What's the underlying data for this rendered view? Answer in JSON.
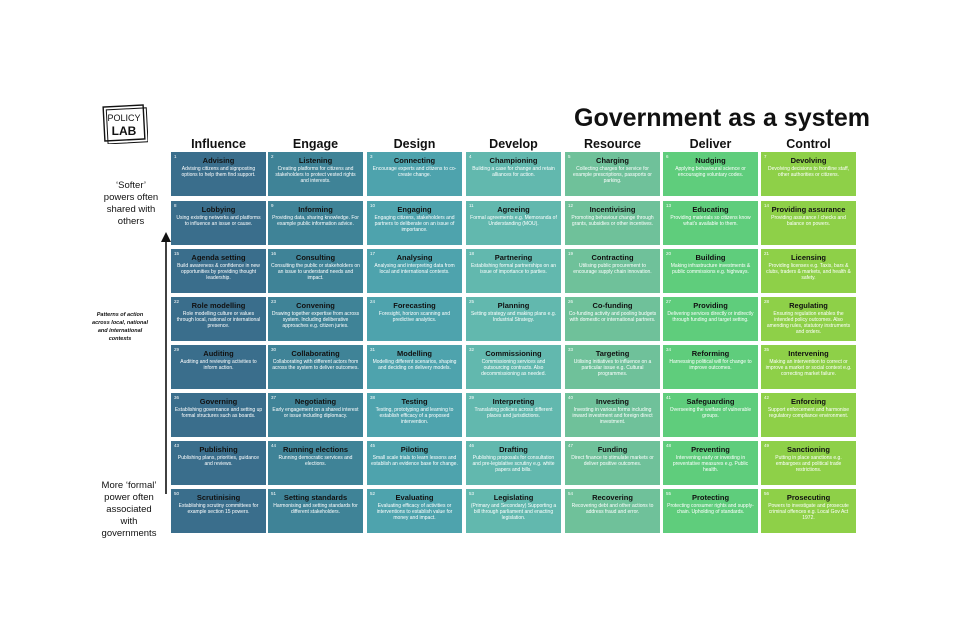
{
  "title": "Government as a system",
  "logo": {
    "line1": "POLICY",
    "line2": "LAB"
  },
  "sidebar": {
    "top": "‘Softer’ powers often shared with others",
    "middle": "Patterns of action across local, national and international contexts",
    "bottom": "More ‘formal’ power often associated with governments"
  },
  "columns": [
    {
      "label": "Influence",
      "color": "#3a6e8c",
      "cells": [
        {
          "num": "1",
          "name": "Advising",
          "desc": "Advising citizens and signposting options to help them find support."
        },
        {
          "num": "8",
          "name": "Lobbying",
          "desc": "Using existing networks and platforms to influence an issue or cause."
        },
        {
          "num": "15",
          "name": "Agenda setting",
          "desc": "Build awareness & confidence in new opportunities by providing thought leadership."
        },
        {
          "num": "22",
          "name": "Role modelling",
          "desc": "Role modelling culture or values through local, national or international presence."
        },
        {
          "num": "29",
          "name": "Auditing",
          "desc": "Auditing and reviewing activities to inform action."
        },
        {
          "num": "36",
          "name": "Governing",
          "desc": "Establishing governance and setting up formal structures such as boards."
        },
        {
          "num": "43",
          "name": "Publishing",
          "desc": "Publishing plans, priorities, guidance and reviews."
        },
        {
          "num": "50",
          "name": "Scrutinising",
          "desc": "Establishing scrutiny committees for example section 15 powers."
        }
      ]
    },
    {
      "label": "Engage",
      "color": "#3f8397",
      "cells": [
        {
          "num": "2",
          "name": "Listening",
          "desc": "Creating platforms for citizens and stakeholders to protect vested rights and interests."
        },
        {
          "num": "9",
          "name": "Informing",
          "desc": "Providing data, sharing knowledge. For example public information advice."
        },
        {
          "num": "16",
          "name": "Consulting",
          "desc": "Consulting the public or stakeholders on an issue to understand needs and impact."
        },
        {
          "num": "23",
          "name": "Convening",
          "desc": "Drawing together expertise from across system. Including deliberative approaches e.g. citizen juries."
        },
        {
          "num": "30",
          "name": "Collaborating",
          "desc": "Collaborating with different actors from across the system to deliver outcomes."
        },
        {
          "num": "37",
          "name": "Negotiating",
          "desc": "Early engagement on a shared interest or issue including diplomacy."
        },
        {
          "num": "44",
          "name": "Running elections",
          "desc": "Running democratic services and elections."
        },
        {
          "num": "51",
          "name": "Setting standards",
          "desc": "Harmonising and setting standards for different stakeholders."
        }
      ]
    },
    {
      "label": "Design",
      "color": "#4ea3ad",
      "cells": [
        {
          "num": "3",
          "name": "Connecting",
          "desc": "Encourage experts and citizens to co-create change."
        },
        {
          "num": "10",
          "name": "Engaging",
          "desc": "Engaging citizens, stakeholders and partners to deliberate on an issue of importance."
        },
        {
          "num": "17",
          "name": "Analysing",
          "desc": "Analysing and interpreting data from local and international contexts."
        },
        {
          "num": "24",
          "name": "Forecasting",
          "desc": "Foresight, horizon scanning and predictive analytics."
        },
        {
          "num": "31",
          "name": "Modelling",
          "desc": "Modelling different scenarios, shaping and deciding on delivery models."
        },
        {
          "num": "38",
          "name": "Testing",
          "desc": "Testing, prototyping and learning to establish efficacy of a proposed intervention."
        },
        {
          "num": "45",
          "name": "Piloting",
          "desc": "Small scale trials to learn lessons and establish an evidence base for change."
        },
        {
          "num": "52",
          "name": "Evaluating",
          "desc": "Evaluating efficacy of activities or interventions to establish value for money and impact."
        }
      ]
    },
    {
      "label": "Develop",
      "color": "#62b8ae",
      "cells": [
        {
          "num": "4",
          "name": "Championing",
          "desc": "Building a case for change and retain alliances for action."
        },
        {
          "num": "11",
          "name": "Agreeing",
          "desc": "Formal agreements e.g. Memoranda of Understanding (MOU)."
        },
        {
          "num": "18",
          "name": "Partnering",
          "desc": "Establishing formal partnerships on an issue of importance to parties."
        },
        {
          "num": "25",
          "name": "Planning",
          "desc": "Setting strategy and making plans e.g. Industrial Strategy."
        },
        {
          "num": "32",
          "name": "Commissioning",
          "desc": "Commissioning services and outsourcing contracts. Also decommissioning as needed."
        },
        {
          "num": "39",
          "name": "Interpreting",
          "desc": "Translating policies across different places and jurisdictions."
        },
        {
          "num": "46",
          "name": "Drafting",
          "desc": "Publishing proposals for consultation and pre-legislative scrutiny e.g. white papers and bills."
        },
        {
          "num": "53",
          "name": "Legislating",
          "desc": "(Primary and Secondary) Supporting a bill through parliament and enacting legislation."
        }
      ]
    },
    {
      "label": "Resource",
      "color": "#6fc19a",
      "cells": [
        {
          "num": "5",
          "name": "Charging",
          "desc": "Collecting charges for service for example prescriptions, passports or parking."
        },
        {
          "num": "12",
          "name": "Incentivising",
          "desc": "Promoting behaviour change through grants, subsidies or other incentives."
        },
        {
          "num": "19",
          "name": "Contracting",
          "desc": "Utilising public procurement to encourage supply chain innovation."
        },
        {
          "num": "26",
          "name": "Co-funding",
          "desc": "Co-funding activity and pooling budgets with domestic or international partners."
        },
        {
          "num": "33",
          "name": "Targeting",
          "desc": "Utilising initiatives to influence on a particular issue e.g. Cultural programmes."
        },
        {
          "num": "40",
          "name": "Investing",
          "desc": "Investing in various forms including inward investment and foreign direct investment."
        },
        {
          "num": "47",
          "name": "Funding",
          "desc": "Direct finance to stimulate markets or deliver positive outcomes."
        },
        {
          "num": "54",
          "name": "Recovering",
          "desc": "Recovering debt and other actions to address fraud and error."
        }
      ]
    },
    {
      "label": "Deliver",
      "color": "#5fcd7c",
      "cells": [
        {
          "num": "6",
          "name": "Nudging",
          "desc": "Applying behavioural science or encouraging voluntary codes."
        },
        {
          "num": "13",
          "name": "Educating",
          "desc": "Providing materials so citizens know what's available to them."
        },
        {
          "num": "20",
          "name": "Building",
          "desc": "Making infrastructure investments & public commissions e.g. highways."
        },
        {
          "num": "27",
          "name": "Providing",
          "desc": "Delivering services directly or indirectly through funding and target setting."
        },
        {
          "num": "34",
          "name": "Reforming",
          "desc": "Harnessing political will for change to improve outcomes."
        },
        {
          "num": "41",
          "name": "Safeguarding",
          "desc": "Overseeing the welfare of vulnerable groups."
        },
        {
          "num": "48",
          "name": "Preventing",
          "desc": "Intervening early or investing in preventative measures e.g. Public health."
        },
        {
          "num": "55",
          "name": "Protecting",
          "desc": "Protecting consumer rights and supply-chain. Upholding of standards."
        }
      ]
    },
    {
      "label": "Control",
      "color": "#8ed048",
      "cells": [
        {
          "num": "7",
          "name": "Devolving",
          "desc": "Devolving decisions to frontline staff, other authorities or citizens."
        },
        {
          "num": "14",
          "name": "Providing assurance",
          "desc": "Providing assurance / checks and balance on powers."
        },
        {
          "num": "21",
          "name": "Licensing",
          "desc": "Providing licenses e.g. Taxis, bars & clubs, traders & markets, and health & safety."
        },
        {
          "num": "28",
          "name": "Regulating",
          "desc": "Ensuring regulation enables the intended policy outcomes. Also amending rules, statutory instruments and orders."
        },
        {
          "num": "35",
          "name": "Intervening",
          "desc": "Making an intervention to correct or improve a market or social context e.g. correcting market failure."
        },
        {
          "num": "42",
          "name": "Enforcing",
          "desc": "Support enforcement and harmonise regulatory compliance environment."
        },
        {
          "num": "49",
          "name": "Sanctioning",
          "desc": "Putting in place sanctions e.g. embargoes and political trade restrictions."
        },
        {
          "num": "56",
          "name": "Prosecuting",
          "desc": "Powers to investigate and prosecute criminal offences e.g. Local Gov Act 1972."
        }
      ]
    }
  ]
}
